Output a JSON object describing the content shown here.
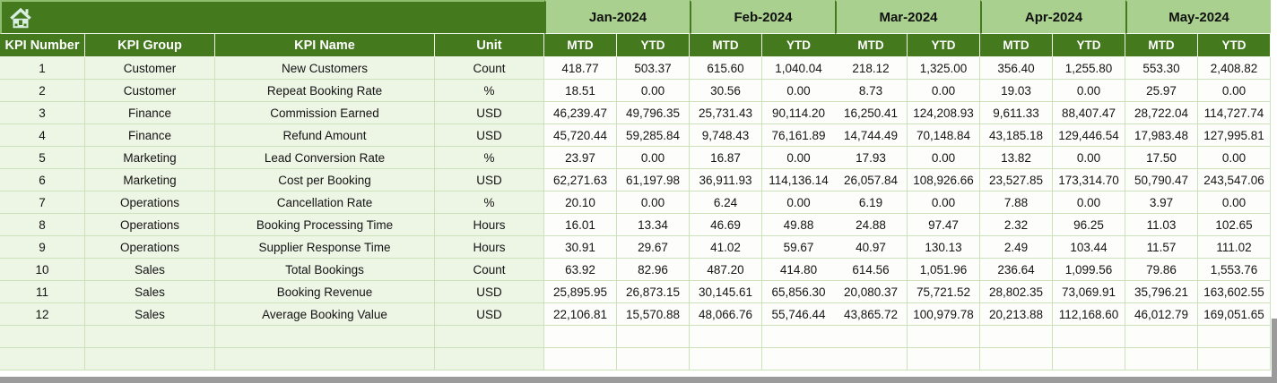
{
  "colors": {
    "header_green": "#44791E",
    "band_green": "#A9D08E",
    "band_edge": "#8FBF6E",
    "row_green": "#EDF5E5",
    "grid_line": "#CDE1BA",
    "cell_white": "#FDFEFB",
    "bar_gray": "#9B9B9B",
    "icon_mint": "#D8EFE2"
  },
  "table": {
    "home_icon": "home-icon",
    "left_headers": [
      "KPI Number",
      "KPI Group",
      "KPI Name",
      "Unit"
    ],
    "months": [
      "Jan-2024",
      "Feb-2024",
      "Mar-2024",
      "Apr-2024",
      "May-2024"
    ],
    "sub_headers": [
      "MTD",
      "YTD"
    ],
    "empty_rows": 2,
    "rows": [
      {
        "kpi_number": "1",
        "kpi_group": "Customer",
        "kpi_name": "New Customers",
        "unit": "Count",
        "values": [
          "418.77",
          "503.37",
          "615.60",
          "1,040.04",
          "218.12",
          "1,325.00",
          "356.40",
          "1,255.80",
          "553.30",
          "2,408.82"
        ]
      },
      {
        "kpi_number": "2",
        "kpi_group": "Customer",
        "kpi_name": "Repeat Booking Rate",
        "unit": "%",
        "values": [
          "18.51",
          "0.00",
          "30.56",
          "0.00",
          "8.73",
          "0.00",
          "19.03",
          "0.00",
          "25.97",
          "0.00"
        ]
      },
      {
        "kpi_number": "3",
        "kpi_group": "Finance",
        "kpi_name": "Commission Earned",
        "unit": "USD",
        "values": [
          "46,239.47",
          "49,796.35",
          "25,731.43",
          "90,114.20",
          "16,250.41",
          "124,208.93",
          "9,611.33",
          "88,407.47",
          "28,722.04",
          "114,727.74"
        ]
      },
      {
        "kpi_number": "4",
        "kpi_group": "Finance",
        "kpi_name": "Refund Amount",
        "unit": "USD",
        "values": [
          "45,720.44",
          "59,285.84",
          "9,748.43",
          "76,161.89",
          "14,744.49",
          "70,148.84",
          "43,185.18",
          "129,446.54",
          "17,983.48",
          "127,995.81"
        ]
      },
      {
        "kpi_number": "5",
        "kpi_group": "Marketing",
        "kpi_name": "Lead Conversion Rate",
        "unit": "%",
        "values": [
          "23.97",
          "0.00",
          "16.87",
          "0.00",
          "17.93",
          "0.00",
          "13.82",
          "0.00",
          "17.50",
          "0.00"
        ]
      },
      {
        "kpi_number": "6",
        "kpi_group": "Marketing",
        "kpi_name": "Cost per Booking",
        "unit": "USD",
        "values": [
          "62,271.63",
          "61,197.98",
          "36,911.93",
          "114,136.14",
          "26,057.84",
          "108,926.66",
          "23,527.85",
          "173,314.70",
          "50,790.47",
          "243,547.06"
        ]
      },
      {
        "kpi_number": "7",
        "kpi_group": "Operations",
        "kpi_name": "Cancellation Rate",
        "unit": "%",
        "values": [
          "20.10",
          "0.00",
          "6.24",
          "0.00",
          "6.19",
          "0.00",
          "7.88",
          "0.00",
          "3.97",
          "0.00"
        ]
      },
      {
        "kpi_number": "8",
        "kpi_group": "Operations",
        "kpi_name": "Booking Processing Time",
        "unit": "Hours",
        "values": [
          "16.01",
          "13.34",
          "46.69",
          "49.88",
          "24.88",
          "97.47",
          "2.32",
          "96.25",
          "11.03",
          "102.65"
        ]
      },
      {
        "kpi_number": "9",
        "kpi_group": "Operations",
        "kpi_name": "Supplier Response Time",
        "unit": "Hours",
        "values": [
          "30.91",
          "29.67",
          "41.02",
          "59.67",
          "40.97",
          "130.13",
          "2.49",
          "103.44",
          "11.57",
          "111.02"
        ]
      },
      {
        "kpi_number": "10",
        "kpi_group": "Sales",
        "kpi_name": "Total Bookings",
        "unit": "Count",
        "values": [
          "63.92",
          "82.96",
          "487.20",
          "414.80",
          "614.56",
          "1,051.96",
          "236.64",
          "1,099.56",
          "79.86",
          "1,553.76"
        ]
      },
      {
        "kpi_number": "11",
        "kpi_group": "Sales",
        "kpi_name": "Booking Revenue",
        "unit": "USD",
        "values": [
          "25,895.95",
          "26,873.15",
          "30,145.61",
          "65,856.30",
          "20,080.37",
          "75,721.52",
          "28,802.35",
          "73,069.91",
          "35,796.21",
          "163,602.55"
        ]
      },
      {
        "kpi_number": "12",
        "kpi_group": "Sales",
        "kpi_name": "Average Booking Value",
        "unit": "USD",
        "values": [
          "22,106.81",
          "15,570.88",
          "48,066.76",
          "55,746.44",
          "43,865.72",
          "100,979.78",
          "20,213.88",
          "112,168.60",
          "46,012.79",
          "169,051.65"
        ]
      }
    ]
  }
}
